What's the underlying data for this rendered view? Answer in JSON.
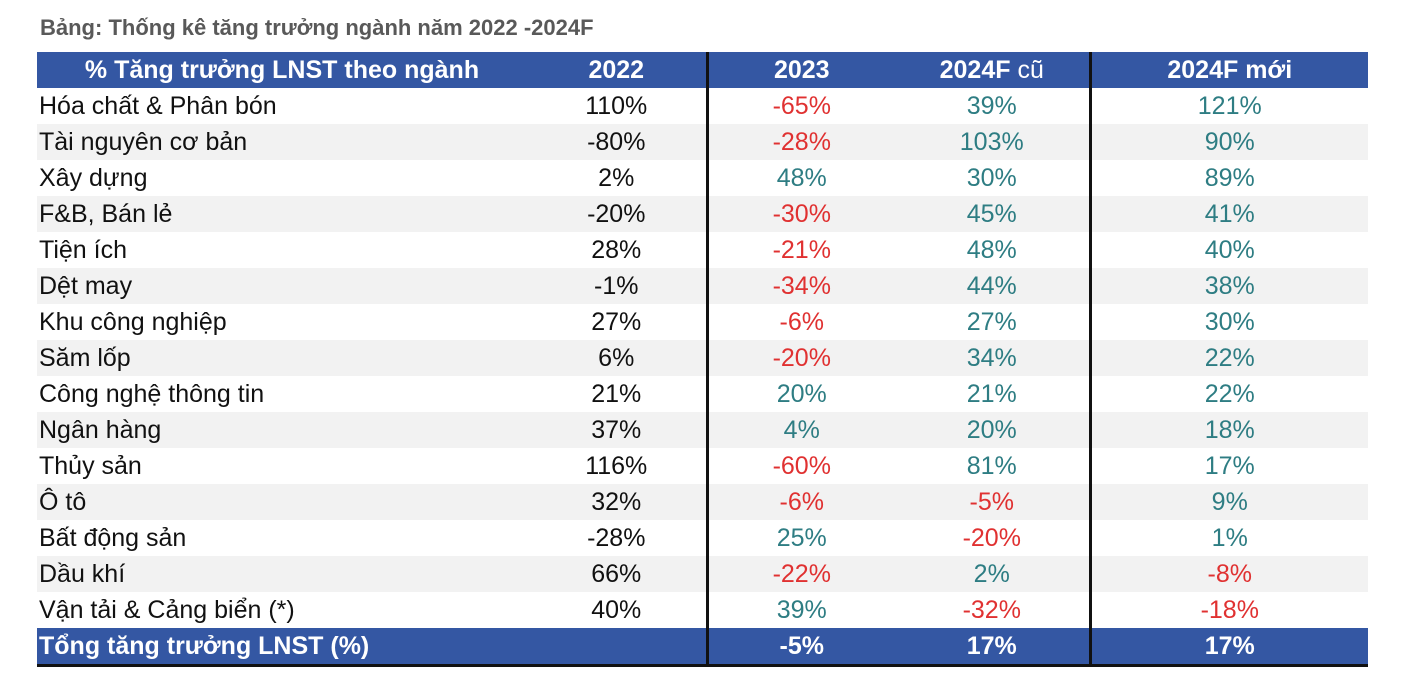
{
  "caption": "Bảng: Thống kê tăng trưởng ngành năm 2022 -2024F",
  "table": {
    "headers": {
      "sector": "% Tăng trưởng LNST theo ngành",
      "y2022": "2022",
      "y2023": "2023",
      "f2024_old_a": "2024F",
      "f2024_old_b": " cũ",
      "f2024_new": "2024F mới"
    },
    "rows": [
      {
        "sector": "Hóa chất & Phân bón",
        "y2022": "110%",
        "y2023": "-65%",
        "f2024_old": "39%",
        "f2024_new": "121%"
      },
      {
        "sector": "Tài nguyên cơ bản",
        "y2022": "-80%",
        "y2023": "-28%",
        "f2024_old": "103%",
        "f2024_new": "90%"
      },
      {
        "sector": "Xây dựng",
        "y2022": "2%",
        "y2023": "48%",
        "f2024_old": "30%",
        "f2024_new": "89%"
      },
      {
        "sector": "F&B, Bán lẻ",
        "y2022": "-20%",
        "y2023": "-30%",
        "f2024_old": "45%",
        "f2024_new": "41%"
      },
      {
        "sector": "Tiện ích",
        "y2022": "28%",
        "y2023": "-21%",
        "f2024_old": "48%",
        "f2024_new": "40%"
      },
      {
        "sector": "Dệt may",
        "y2022": "-1%",
        "y2023": "-34%",
        "f2024_old": "44%",
        "f2024_new": "38%"
      },
      {
        "sector": "Khu công nghiệp",
        "y2022": "27%",
        "y2023": "-6%",
        "f2024_old": "27%",
        "f2024_new": "30%"
      },
      {
        "sector": "Săm lốp",
        "y2022": "6%",
        "y2023": "-20%",
        "f2024_old": "34%",
        "f2024_new": "22%"
      },
      {
        "sector": "Công nghệ thông tin",
        "y2022": "21%",
        "y2023": "20%",
        "f2024_old": "21%",
        "f2024_new": "22%"
      },
      {
        "sector": "Ngân hàng",
        "y2022": "37%",
        "y2023": "4%",
        "f2024_old": "20%",
        "f2024_new": "18%"
      },
      {
        "sector": "Thủy sản",
        "y2022": "116%",
        "y2023": "-60%",
        "f2024_old": "81%",
        "f2024_new": "17%"
      },
      {
        "sector": "Ô tô",
        "y2022": "32%",
        "y2023": "-6%",
        "f2024_old": "-5%",
        "f2024_new": "9%"
      },
      {
        "sector": "Bất động sản",
        "y2022": "-28%",
        "y2023": "25%",
        "f2024_old": "-20%",
        "f2024_new": "1%"
      },
      {
        "sector": "Dầu khí",
        "y2022": "66%",
        "y2023": "-22%",
        "f2024_old": "2%",
        "f2024_new": "-8%"
      },
      {
        "sector": "Vận tải & Cảng biển (*)",
        "y2022": "40%",
        "y2023": "39%",
        "f2024_old": "-32%",
        "f2024_new": "-18%"
      }
    ],
    "total": {
      "sector": "Tổng tăng trưởng LNST (%)",
      "y2022": "",
      "y2023": "-5%",
      "f2024_old": "17%",
      "f2024_new": "17%"
    }
  },
  "colors": {
    "header_bg": "#3457a3",
    "positive": "#2e7d83",
    "negative": "#e03131",
    "caption": "#595959"
  }
}
